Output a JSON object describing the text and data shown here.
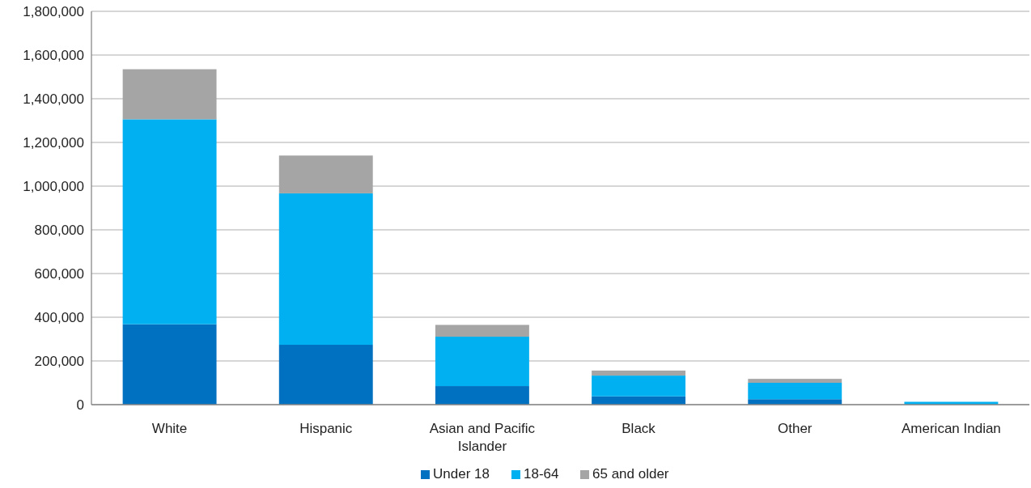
{
  "chart_data": {
    "type": "bar",
    "stacked": true,
    "categories": [
      "White",
      "Hispanic",
      "Asian and Pacific Islander",
      "Black",
      "Other",
      "American Indian"
    ],
    "series": [
      {
        "name": "Under 18",
        "color": "#0070c0",
        "values": [
          368000,
          274000,
          85000,
          38000,
          25000,
          null
        ]
      },
      {
        "name": "18-64",
        "color": "#00b0f0",
        "values": [
          938000,
          693000,
          226000,
          95000,
          75000,
          13000
        ]
      },
      {
        "name": "65 and older",
        "color": "#a5a5a5",
        "values": [
          229000,
          173000,
          54000,
          23000,
          18000,
          null
        ]
      }
    ],
    "ylim": [
      0,
      1800000
    ],
    "yticks": [
      {
        "value": 0,
        "label": "0"
      },
      {
        "value": 200000,
        "label": "200,000"
      },
      {
        "value": 400000,
        "label": "400,000"
      },
      {
        "value": 600000,
        "label": "600,000"
      },
      {
        "value": 800000,
        "label": "800,000"
      },
      {
        "value": 1000000,
        "label": "1,000,000"
      },
      {
        "value": 1200000,
        "label": "1,200,000"
      },
      {
        "value": 1400000,
        "label": "1,400,000"
      },
      {
        "value": 1600000,
        "label": "1,600,000"
      },
      {
        "value": 1800000,
        "label": "1,800,000"
      }
    ],
    "grid": "y",
    "legend": "bottom"
  }
}
